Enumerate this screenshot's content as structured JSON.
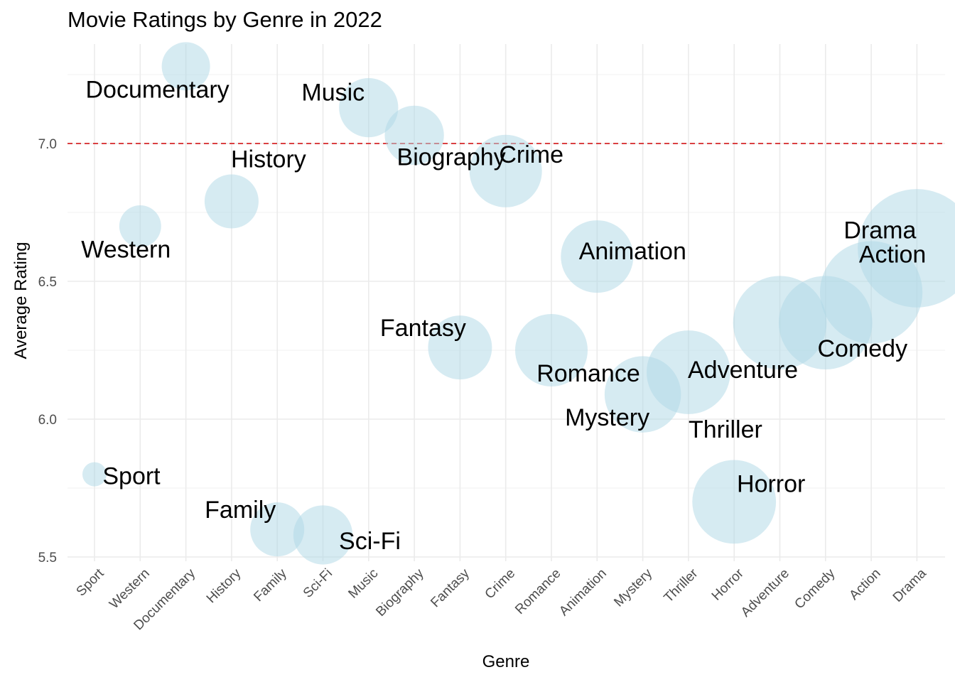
{
  "chart_data": {
    "type": "scatter",
    "title": "Movie Ratings by Genre in 2022",
    "xlabel": "Genre",
    "ylabel": "Average Rating",
    "ylim": [
      5.5,
      7.3
    ],
    "yticks": [
      5.5,
      6.0,
      6.5,
      7.0
    ],
    "ytick_labels": [
      "5.5",
      "6.0",
      "6.5",
      "7.0"
    ],
    "categories": [
      "Sport",
      "Western",
      "Documentary",
      "History",
      "Family",
      "Sci-Fi",
      "Music",
      "Biography",
      "Fantasy",
      "Crime",
      "Romance",
      "Animation",
      "Mystery",
      "Thriller",
      "Horror",
      "Adventure",
      "Comedy",
      "Action",
      "Drama"
    ],
    "values": [
      5.8,
      6.7,
      7.28,
      6.79,
      5.6,
      5.58,
      7.13,
      7.03,
      6.26,
      6.9,
      6.25,
      6.59,
      6.09,
      6.17,
      5.7,
      6.35,
      6.35,
      6.46,
      6.62
    ],
    "sizes": [
      1,
      3,
      4,
      5,
      5,
      6,
      6,
      6,
      7,
      9,
      9,
      9,
      10,
      12,
      12,
      15,
      15,
      18,
      24
    ],
    "labels": [
      "Sport",
      "Western",
      "Documentary",
      "History",
      "Family",
      "Sci-Fi",
      "Music",
      "Biography",
      "Fantasy",
      "Crime",
      "Romance",
      "Animation",
      "Mystery",
      "Thriller",
      "Horror",
      "Adventure",
      "Comedy",
      "Action",
      "Drama"
    ],
    "reference_line": {
      "y": 7.0,
      "style": "dashed",
      "color": "#d62728"
    },
    "bubble_color": "#add8e6",
    "grid": true,
    "legend": "none"
  }
}
